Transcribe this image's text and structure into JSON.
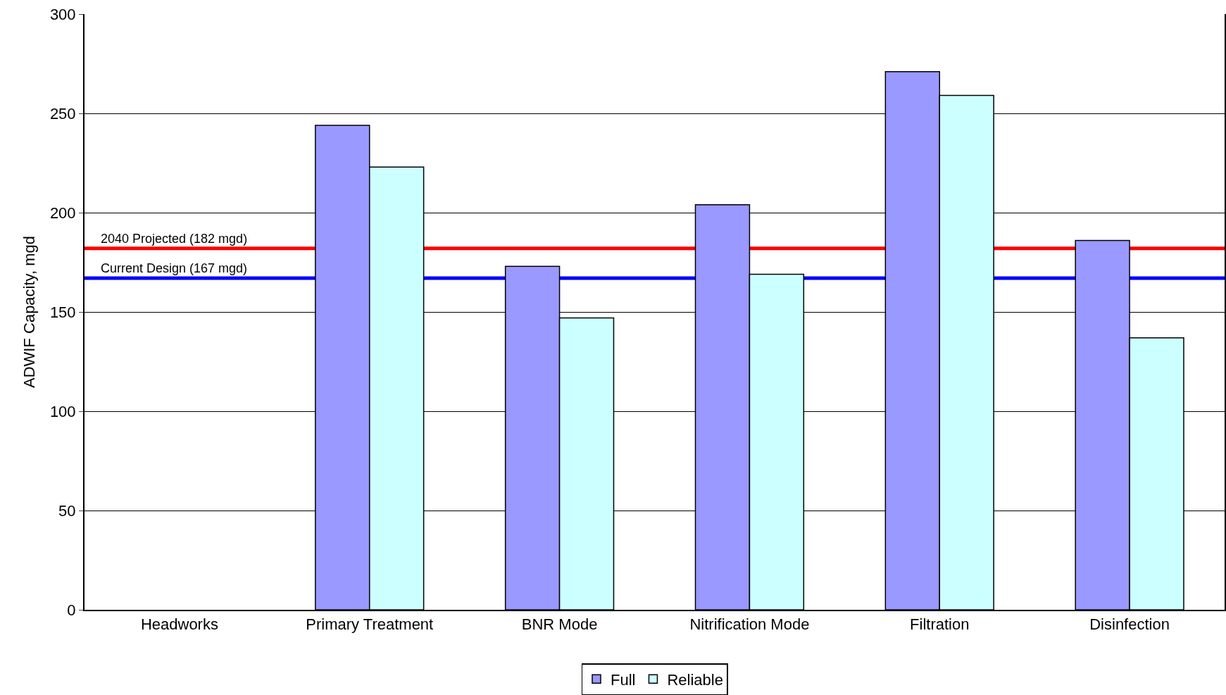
{
  "chart_data": {
    "type": "bar",
    "ylabel": "ADWIF Capacity, mgd",
    "categories": [
      "Headworks",
      "Primary Treatment",
      "BNR Mode",
      "Nitrification Mode",
      "Filtration",
      "Disinfection"
    ],
    "series": [
      {
        "name": "Full",
        "color": "#9999ff",
        "values": [
          null,
          244,
          173,
          204,
          271,
          186
        ]
      },
      {
        "name": "Reliable",
        "color": "#ccffff",
        "values": [
          null,
          223,
          147,
          169,
          259,
          137
        ]
      }
    ],
    "ylim": [
      0,
      300
    ],
    "yticks": [
      0,
      50,
      100,
      150,
      200,
      250,
      300
    ],
    "grid": "y",
    "legend": "bottom",
    "ref_lines": [
      {
        "axis": "y",
        "value": 182,
        "label": "2040 Projected (182 mgd)",
        "color": "#ff0000",
        "line_style": "solid"
      },
      {
        "axis": "y",
        "value": 167,
        "label": "Current Design (167 mgd)",
        "color": "#0000ff",
        "line_style": "solid"
      }
    ]
  }
}
